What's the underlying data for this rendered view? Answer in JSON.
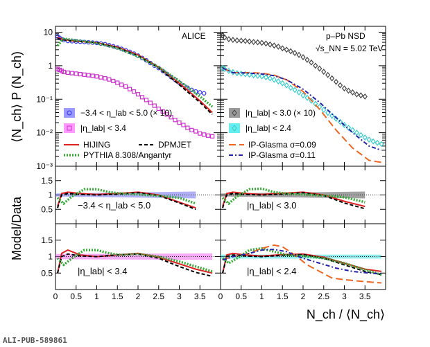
{
  "figure": {
    "experiment_label": "ALICE",
    "system_label": "p–Pb NSD",
    "energy_label": "√s_NN = 5.02 TeV",
    "publication_id": "ALI-PUB-589861",
    "y_axis_top_label": "⟨N_ch⟩ P (N_ch)",
    "y_axis_ratio_label": "Model/Data",
    "x_axis_label": "N_ch / ⟨N_ch⟩"
  },
  "chart_data": [
    {
      "type": "scatter",
      "panel": "top-left",
      "log_y": true,
      "xlim": [
        0,
        4
      ],
      "ylim": [
        0.001,
        15
      ],
      "yticks": [
        "10⁻³",
        "10⁻²",
        "10⁻¹",
        "1",
        "10"
      ],
      "series": [
        {
          "name": "−3.4 < η_lab < 5.0 (× 10)",
          "color": "#3333ee",
          "marker": "circle",
          "x": [
            0.05,
            0.1,
            0.15,
            0.2,
            0.3,
            0.4,
            0.5,
            0.6,
            0.7,
            0.8,
            0.9,
            1.0,
            1.1,
            1.2,
            1.3,
            1.4,
            1.5,
            1.6,
            1.7,
            1.8,
            1.9,
            2.0,
            2.1,
            2.2,
            2.3,
            2.4,
            2.5,
            2.6,
            2.7,
            2.8,
            2.9,
            3.0,
            3.1,
            3.2,
            3.3,
            3.4,
            3.5,
            3.6
          ],
          "y": [
            7.5,
            6.8,
            6.2,
            5.8,
            5.5,
            5.4,
            5.3,
            5.2,
            5.1,
            5.0,
            4.9,
            4.8,
            4.6,
            4.4,
            4.1,
            3.8,
            3.5,
            3.2,
            2.9,
            2.6,
            2.3,
            2.0,
            1.7,
            1.45,
            1.2,
            1.0,
            0.85,
            0.7,
            0.57,
            0.46,
            0.38,
            0.31,
            0.26,
            0.22,
            0.19,
            0.17,
            0.16,
            0.15
          ]
        },
        {
          "name": "|η_lab| < 3.4",
          "color": "#cc33cc",
          "marker": "square",
          "x": [
            0.05,
            0.1,
            0.15,
            0.2,
            0.3,
            0.4,
            0.5,
            0.6,
            0.7,
            0.8,
            0.9,
            1.0,
            1.1,
            1.2,
            1.3,
            1.4,
            1.5,
            1.6,
            1.7,
            1.8,
            1.9,
            2.0,
            2.1,
            2.2,
            2.3,
            2.4,
            2.5,
            2.6,
            2.7,
            2.8,
            2.9,
            3.0,
            3.1,
            3.2,
            3.3,
            3.4,
            3.5,
            3.6,
            3.7,
            3.8
          ],
          "y": [
            0.8,
            0.75,
            0.7,
            0.65,
            0.62,
            0.6,
            0.58,
            0.56,
            0.54,
            0.52,
            0.5,
            0.48,
            0.45,
            0.42,
            0.39,
            0.35,
            0.31,
            0.27,
            0.24,
            0.2,
            0.17,
            0.14,
            0.115,
            0.095,
            0.078,
            0.064,
            0.052,
            0.043,
            0.035,
            0.029,
            0.024,
            0.02,
            0.017,
            0.014,
            0.012,
            0.011,
            0.0095,
            0.0088,
            0.0082,
            0.0078
          ]
        },
        {
          "name": "HIJING",
          "color": "#dd2222",
          "marker": "line",
          "x": [
            0.05,
            0.2,
            0.5,
            1.0,
            1.5,
            2.0,
            2.5,
            3.0,
            3.5,
            3.8
          ],
          "y": [
            7.0,
            6.0,
            5.4,
            4.9,
            3.6,
            2.1,
            0.9,
            0.3,
            0.09,
            0.04
          ]
        },
        {
          "name": "DPMJET",
          "color": "#000000",
          "marker": "dashed",
          "x": [
            0.05,
            0.2,
            0.5,
            1.0,
            1.5,
            2.0,
            2.5,
            3.0,
            3.5,
            3.8
          ],
          "y": [
            6.5,
            5.9,
            5.4,
            4.9,
            3.5,
            2.0,
            0.85,
            0.27,
            0.08,
            0.035
          ]
        },
        {
          "name": "PYTHIA 8.308/Angantyr",
          "color": "#33aa33",
          "marker": "dotted",
          "x": [
            0.05,
            0.2,
            0.5,
            1.0,
            1.5,
            2.0,
            2.5,
            3.0,
            3.5,
            3.8
          ],
          "y": [
            4.0,
            6.4,
            5.8,
            4.7,
            3.3,
            1.9,
            0.9,
            0.35,
            0.12,
            0.06
          ]
        }
      ]
    },
    {
      "type": "scatter",
      "panel": "top-right",
      "log_y": true,
      "xlim": [
        0,
        4
      ],
      "ylim": [
        0.001,
        15
      ],
      "series": [
        {
          "name": "|η_lab| < 3.0 (× 10)",
          "color": "#444444",
          "marker": "diamond",
          "x": [
            0.05,
            0.1,
            0.2,
            0.3,
            0.4,
            0.5,
            0.6,
            0.7,
            0.8,
            0.9,
            1.0,
            1.1,
            1.2,
            1.3,
            1.4,
            1.5,
            1.6,
            1.7,
            1.8,
            1.9,
            2.0,
            2.1,
            2.2,
            2.3,
            2.4,
            2.5,
            2.6,
            2.7,
            2.8,
            2.9,
            3.0,
            3.1,
            3.2,
            3.3,
            3.4,
            3.5
          ],
          "y": [
            8.0,
            7.0,
            6.2,
            5.9,
            5.7,
            5.6,
            5.5,
            5.3,
            5.1,
            5.0,
            4.8,
            4.6,
            4.3,
            4.0,
            3.7,
            3.3,
            3.0,
            2.7,
            2.4,
            2.1,
            1.8,
            1.5,
            1.25,
            1.0,
            0.82,
            0.66,
            0.53,
            0.42,
            0.33,
            0.26,
            0.21,
            0.18,
            0.16,
            0.14,
            0.13,
            0.12
          ]
        },
        {
          "name": "|η_lab| < 2.4",
          "color": "#33cccc",
          "marker": "diamond",
          "x": [
            0.05,
            0.1,
            0.2,
            0.3,
            0.4,
            0.5,
            0.6,
            0.7,
            0.8,
            0.9,
            1.0,
            1.1,
            1.2,
            1.3,
            1.4,
            1.5,
            1.6,
            1.7,
            1.8,
            1.9,
            2.0,
            2.1,
            2.2,
            2.3,
            2.4,
            2.5,
            2.6,
            2.7,
            2.8,
            2.9,
            3.0,
            3.1,
            3.2,
            3.3,
            3.4,
            3.5,
            3.6,
            3.7,
            3.8,
            3.9
          ],
          "y": [
            0.85,
            0.8,
            0.7,
            0.64,
            0.6,
            0.58,
            0.56,
            0.54,
            0.52,
            0.5,
            0.48,
            0.45,
            0.42,
            0.38,
            0.34,
            0.3,
            0.26,
            0.22,
            0.19,
            0.16,
            0.13,
            0.11,
            0.09,
            0.073,
            0.059,
            0.048,
            0.039,
            0.032,
            0.026,
            0.021,
            0.017,
            0.014,
            0.012,
            0.01,
            0.0085,
            0.0072,
            0.0062,
            0.0055,
            0.005,
            0.0046
          ]
        },
        {
          "name": "IP-Glasma  σ=0.09",
          "color": "#ee6622",
          "marker": "longdash",
          "x": [
            0.05,
            0.3,
            0.7,
            1.0,
            1.3,
            1.6,
            2.0,
            2.4,
            2.8,
            3.2,
            3.6,
            3.9
          ],
          "y": [
            0.85,
            0.62,
            0.62,
            0.6,
            0.52,
            0.38,
            0.17,
            0.05,
            0.012,
            0.0035,
            0.0015,
            0.0013
          ]
        },
        {
          "name": "IP-Glasma  σ=0.11",
          "color": "#2222aa",
          "marker": "dashdot",
          "x": [
            0.05,
            0.3,
            0.7,
            1.0,
            1.3,
            1.6,
            2.0,
            2.4,
            2.8,
            3.2,
            3.6,
            3.9
          ],
          "y": [
            0.85,
            0.62,
            0.6,
            0.57,
            0.5,
            0.38,
            0.2,
            0.08,
            0.028,
            0.01,
            0.004,
            0.003
          ]
        }
      ]
    },
    {
      "type": "line",
      "panel": "ratio-upper-left",
      "label": "−3.4 <   η_lab < 5.0",
      "xlim": [
        0,
        4
      ],
      "ylim": [
        0,
        2
      ],
      "yticks": [
        "0.5",
        "1",
        "1.5"
      ],
      "reference_line": 1,
      "band": {
        "color": "#7070ee",
        "x": [
          0,
          3.4
        ],
        "low_start": 0.95,
        "high_start": 1.05,
        "low_end": 0.88,
        "high_end": 1.12
      },
      "series": [
        {
          "name": "HIJING",
          "x": [
            0.05,
            0.15,
            0.3,
            0.6,
            1.0,
            1.5,
            2.0,
            2.5,
            3.0,
            3.4
          ],
          "y": [
            0.6,
            1.05,
            1.1,
            1.05,
            1.02,
            1.05,
            1.1,
            1.0,
            0.75,
            0.55
          ]
        },
        {
          "name": "DPMJET",
          "x": [
            0.05,
            0.15,
            0.3,
            0.6,
            1.0,
            1.5,
            2.0,
            2.5,
            3.0,
            3.4
          ],
          "y": [
            0.55,
            1.0,
            1.05,
            1.02,
            1.0,
            1.03,
            1.08,
            0.98,
            0.72,
            0.5
          ]
        },
        {
          "name": "PYTHIA 8.308/Angantyr",
          "x": [
            0.05,
            0.2,
            0.4,
            0.7,
            1.0,
            1.3,
            1.6,
            2.0,
            2.5,
            3.0,
            3.4
          ],
          "y": [
            0.9,
            0.7,
            0.95,
            1.2,
            1.2,
            1.1,
            1.05,
            1.02,
            0.97,
            0.9,
            0.7
          ]
        }
      ]
    },
    {
      "type": "line",
      "panel": "ratio-upper-right",
      "label": "|η_lab| < 3.0",
      "xlim": [
        0,
        4
      ],
      "ylim": [
        0,
        2
      ],
      "reference_line": 1,
      "band": {
        "color": "#555555",
        "x": [
          0,
          3.5
        ],
        "low_start": 0.95,
        "high_start": 1.05,
        "low_end": 0.88,
        "high_end": 1.12
      },
      "series": [
        {
          "name": "HIJING",
          "x": [
            0.05,
            0.15,
            0.3,
            0.6,
            1.0,
            1.5,
            2.0,
            2.5,
            3.0,
            3.5
          ],
          "y": [
            0.6,
            1.05,
            1.1,
            1.05,
            1.02,
            1.06,
            1.1,
            1.0,
            0.78,
            0.6
          ]
        },
        {
          "name": "DPMJET",
          "x": [
            0.05,
            0.15,
            0.3,
            0.6,
            1.0,
            1.5,
            2.0,
            2.5,
            3.0,
            3.5
          ],
          "y": [
            0.55,
            1.0,
            1.05,
            1.02,
            1.0,
            1.03,
            1.08,
            0.98,
            0.72,
            0.52
          ]
        },
        {
          "name": "PYTHIA 8.308/Angantyr",
          "x": [
            0.05,
            0.2,
            0.4,
            0.7,
            1.0,
            1.3,
            1.6,
            2.0,
            2.5,
            3.0,
            3.5
          ],
          "y": [
            0.9,
            0.7,
            0.95,
            1.2,
            1.22,
            1.1,
            1.05,
            1.02,
            0.98,
            0.92,
            0.75
          ]
        }
      ]
    },
    {
      "type": "line",
      "panel": "ratio-lower-left",
      "label": "|η_lab| < 3.4",
      "xlim": [
        0,
        4
      ],
      "ylim": [
        0,
        2
      ],
      "yticks": [
        "0.5",
        "1",
        "1.5"
      ],
      "reference_line": 1,
      "band": {
        "color": "#ee66ee",
        "x": [
          0,
          3.8
        ],
        "low_start": 0.92,
        "high_start": 1.08,
        "low_end": 0.9,
        "high_end": 1.1
      },
      "series": [
        {
          "name": "HIJING",
          "x": [
            0.05,
            0.15,
            0.3,
            0.6,
            1.0,
            1.5,
            2.0,
            2.5,
            3.0,
            3.4,
            3.8
          ],
          "y": [
            0.5,
            1.1,
            1.2,
            1.05,
            1.0,
            1.05,
            1.1,
            0.98,
            0.78,
            0.62,
            0.5
          ]
        },
        {
          "name": "DPMJET",
          "x": [
            0.05,
            0.15,
            0.3,
            0.6,
            1.0,
            1.5,
            2.0,
            2.5,
            3.0,
            3.4,
            3.8
          ],
          "y": [
            0.5,
            1.0,
            1.08,
            1.02,
            1.0,
            1.05,
            1.08,
            0.95,
            0.7,
            0.52,
            0.4
          ]
        },
        {
          "name": "PYTHIA 8.308/Angantyr",
          "x": [
            0.05,
            0.2,
            0.4,
            0.7,
            1.0,
            1.3,
            1.6,
            2.0,
            2.5,
            3.0,
            3.4,
            3.8
          ],
          "y": [
            0.95,
            0.75,
            0.95,
            1.2,
            1.2,
            1.1,
            1.05,
            1.08,
            1.0,
            0.85,
            0.7,
            0.55
          ]
        }
      ]
    },
    {
      "type": "line",
      "panel": "ratio-lower-right",
      "label": "|η_lab| < 2.4",
      "xlim": [
        0,
        4
      ],
      "ylim": [
        0,
        2
      ],
      "reference_line": 1,
      "band": {
        "color": "#33dddd",
        "x": [
          0,
          3.9
        ],
        "low_start": 0.94,
        "high_start": 1.06,
        "low_end": 0.94,
        "high_end": 1.06
      },
      "series": [
        {
          "name": "HIJING",
          "x": [
            0.05,
            0.15,
            0.3,
            0.6,
            1.0,
            1.5,
            2.0,
            2.5,
            3.0,
            3.5,
            3.9
          ],
          "y": [
            0.5,
            1.05,
            1.1,
            1.05,
            1.02,
            1.06,
            1.08,
            0.98,
            0.8,
            0.62,
            0.55
          ]
        },
        {
          "name": "DPMJET",
          "x": [
            0.05,
            0.15,
            0.3,
            0.6,
            1.0,
            1.5,
            2.0,
            2.5,
            3.0,
            3.5,
            3.9
          ],
          "y": [
            0.5,
            1.0,
            1.05,
            1.02,
            1.0,
            1.04,
            1.06,
            0.95,
            0.75,
            0.55,
            0.45
          ]
        },
        {
          "name": "PYTHIA 8.308/Angantyr",
          "x": [
            0.05,
            0.2,
            0.4,
            0.7,
            1.0,
            1.3,
            1.6,
            2.0,
            2.5,
            3.0,
            3.5,
            3.9
          ],
          "y": [
            0.95,
            0.8,
            0.95,
            1.2,
            1.25,
            1.15,
            1.05,
            1.02,
            0.95,
            0.8,
            0.6,
            0.45
          ]
        },
        {
          "name": "IP-Glasma  σ=0.09",
          "x": [
            0.05,
            0.3,
            0.7,
            1.0,
            1.3,
            1.5,
            1.8,
            2.1,
            2.4,
            2.7,
            3.0,
            3.4,
            3.9
          ],
          "y": [
            0.9,
            1.0,
            1.1,
            1.25,
            1.35,
            1.3,
            1.05,
            0.75,
            0.55,
            0.35,
            0.3,
            0.25,
            0.2
          ]
        },
        {
          "name": "IP-Glasma  σ=0.11",
          "x": [
            0.05,
            0.3,
            0.7,
            1.0,
            1.3,
            1.6,
            2.0,
            2.4,
            2.8,
            3.2,
            3.6,
            3.9
          ],
          "y": [
            0.9,
            1.0,
            1.1,
            1.2,
            1.22,
            1.15,
            0.95,
            0.8,
            0.65,
            0.55,
            0.5,
            0.48
          ]
        }
      ]
    }
  ],
  "legend": {
    "left": [
      {
        "label": "−3.4 <   η_lab < 5.0 (× 10)",
        "color": "#3333ee",
        "marker": "circle",
        "box": "#9999ff"
      },
      {
        "label": "|η_lab| < 3.4",
        "color": "#cc33cc",
        "marker": "square",
        "box": "#ff99ff"
      },
      {
        "label": "HIJING",
        "color": "#dd2222",
        "marker": "line"
      },
      {
        "label": "DPMJET",
        "color": "#000000",
        "marker": "dashed"
      },
      {
        "label": "PYTHIA 8.308/Angantyr",
        "color": "#33aa33",
        "marker": "dotted"
      }
    ],
    "right": [
      {
        "label": "|η_lab| < 3.0 (× 10)",
        "color": "#444444",
        "marker": "diamond",
        "box": "#999999"
      },
      {
        "label": "|η_lab| < 2.4",
        "color": "#33cccc",
        "marker": "diamond",
        "box": "#66eeee"
      },
      {
        "label": "IP-Glasma   σ=0.09",
        "color": "#ee6622",
        "marker": "longdash"
      },
      {
        "label": "IP-Glasma   σ=0.11",
        "color": "#2222aa",
        "marker": "dashdot"
      }
    ]
  },
  "xticks": [
    "0",
    "0.5",
    "1",
    "1.5",
    "2",
    "2.5",
    "3",
    "3.5"
  ]
}
